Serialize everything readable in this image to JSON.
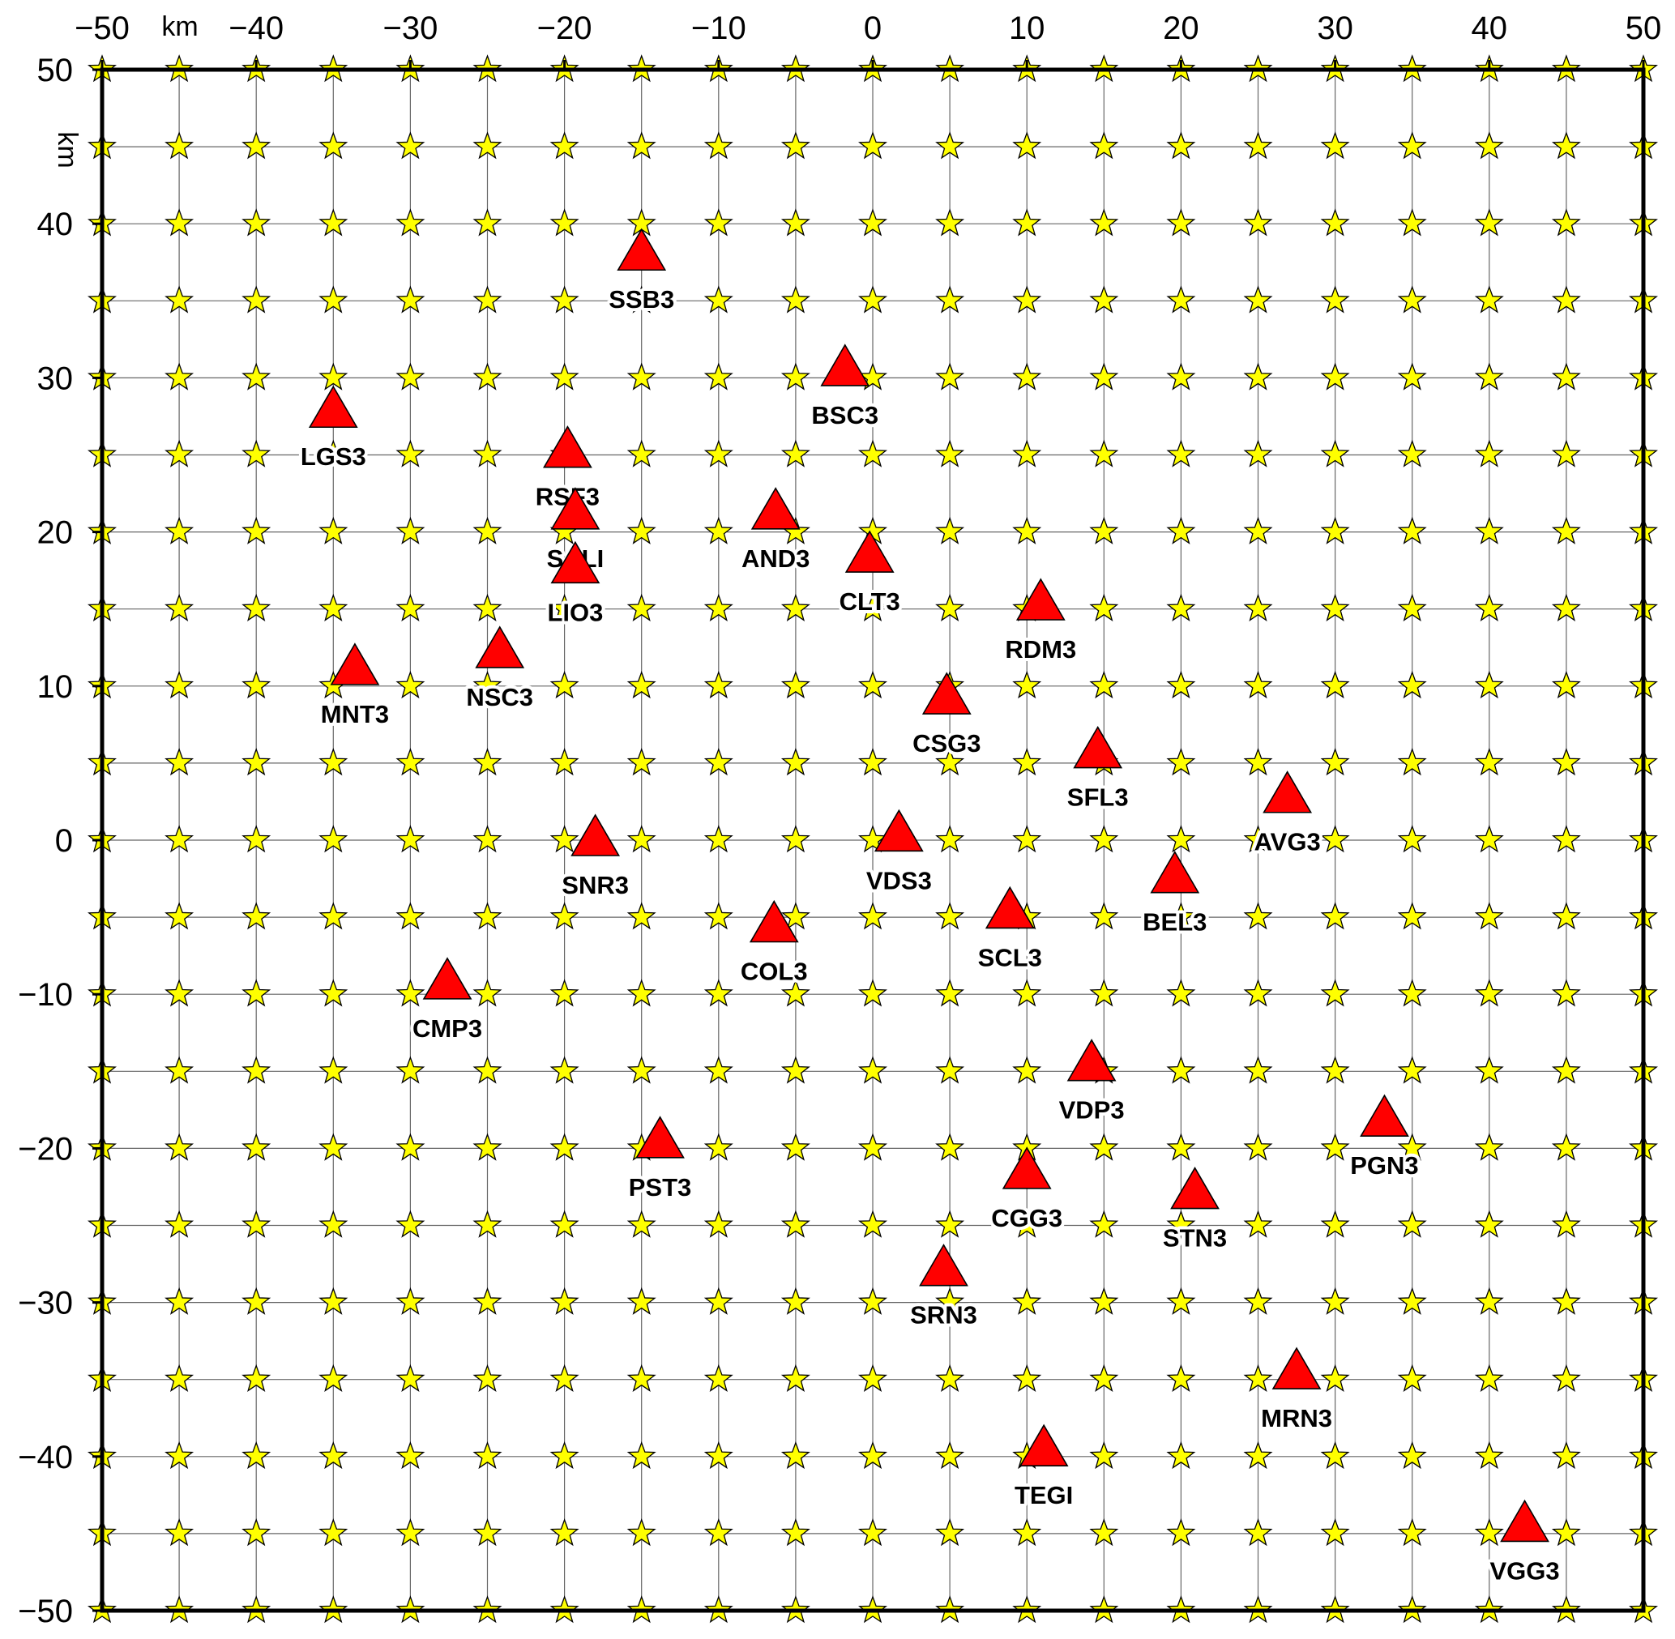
{
  "chart_data": {
    "type": "scatter",
    "title": "",
    "x_unit_label": "km",
    "y_unit_label": "km",
    "xlim": [
      -50,
      50
    ],
    "ylim": [
      -50,
      50
    ],
    "x_ticks": [
      -50,
      -40,
      -30,
      -20,
      -10,
      0,
      10,
      20,
      30,
      40,
      50
    ],
    "y_ticks": [
      50,
      40,
      30,
      20,
      10,
      0,
      -10,
      -20,
      -30,
      -40,
      -50
    ],
    "grid": true,
    "grid_spacing": 5,
    "grid_points": {
      "marker": "star",
      "color": "#ffff00",
      "x_start": -50,
      "x_end": 50,
      "x_step": 5,
      "y_start": -50,
      "y_end": 50,
      "y_step": 5
    },
    "stations": {
      "marker": "triangle",
      "color": "#ff0000",
      "points": [
        {
          "name": "SSB3",
          "x": -15,
          "y": 38
        },
        {
          "name": "BSC3",
          "x": -1.8,
          "y": 30.5
        },
        {
          "name": "LGS3",
          "x": -35,
          "y": 27.8
        },
        {
          "name": "RSF3",
          "x": -19.8,
          "y": 25.2
        },
        {
          "name": "SALI",
          "x": -19.3,
          "y": 21.2
        },
        {
          "name": "AND3",
          "x": -6.3,
          "y": 21.2
        },
        {
          "name": "LIO3",
          "x": -19.3,
          "y": 17.7
        },
        {
          "name": "CLT3",
          "x": -0.2,
          "y": 18.4
        },
        {
          "name": "RDM3",
          "x": 10.9,
          "y": 15.3
        },
        {
          "name": "NSC3",
          "x": -24.2,
          "y": 12.2
        },
        {
          "name": "MNT3",
          "x": -33.6,
          "y": 11.1
        },
        {
          "name": "CSG3",
          "x": 4.8,
          "y": 9.2
        },
        {
          "name": "SFL3",
          "x": 14.6,
          "y": 5.7
        },
        {
          "name": "AVG3",
          "x": 26.9,
          "y": 2.8
        },
        {
          "name": "VDS3",
          "x": 1.7,
          "y": 0.3
        },
        {
          "name": "SNR3",
          "x": -18,
          "y": 0
        },
        {
          "name": "BEL3",
          "x": 19.6,
          "y": -2.4
        },
        {
          "name": "SCL3",
          "x": 8.9,
          "y": -4.7
        },
        {
          "name": "COL3",
          "x": -6.4,
          "y": -5.6
        },
        {
          "name": "CMP3",
          "x": -27.6,
          "y": -9.3
        },
        {
          "name": "VDP3",
          "x": 14.2,
          "y": -14.6
        },
        {
          "name": "PGN3",
          "x": 33.2,
          "y": -18.2
        },
        {
          "name": "PST3",
          "x": -13.8,
          "y": -19.6
        },
        {
          "name": "CGG3",
          "x": 10,
          "y": -21.6
        },
        {
          "name": "STN3",
          "x": 20.9,
          "y": -22.9
        },
        {
          "name": "SRN3",
          "x": 4.6,
          "y": -27.9
        },
        {
          "name": "MRN3",
          "x": 27.5,
          "y": -34.6
        },
        {
          "name": "TEGI",
          "x": 11.1,
          "y": -39.6
        },
        {
          "name": "VGG3",
          "x": 42.3,
          "y": -44.5
        }
      ]
    }
  }
}
